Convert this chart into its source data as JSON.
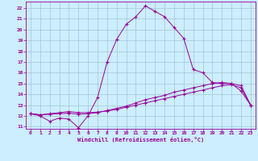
{
  "xlabel": "Windchill (Refroidissement éolien,°C)",
  "bg_color": "#cceeff",
  "grid_color": "#99bbcc",
  "line_color": "#990099",
  "xlim": [
    -0.5,
    23.5
  ],
  "ylim": [
    10.8,
    22.6
  ],
  "xticks": [
    0,
    1,
    2,
    3,
    4,
    5,
    6,
    7,
    8,
    9,
    10,
    11,
    12,
    13,
    14,
    15,
    16,
    17,
    18,
    19,
    20,
    21,
    22,
    23
  ],
  "yticks": [
    11,
    12,
    13,
    14,
    15,
    16,
    17,
    18,
    19,
    20,
    21,
    22
  ],
  "line1_x": [
    0,
    1,
    2,
    3,
    4,
    5,
    6,
    7,
    8,
    9,
    10,
    11,
    12,
    13,
    14,
    15,
    16,
    17,
    18,
    19,
    20,
    21,
    22,
    23
  ],
  "line1_y": [
    12.2,
    12.0,
    11.5,
    11.8,
    11.7,
    10.9,
    12.0,
    13.7,
    17.0,
    19.1,
    20.5,
    21.2,
    22.2,
    21.7,
    21.2,
    20.2,
    19.2,
    16.3,
    16.0,
    15.1,
    15.0,
    15.0,
    14.3,
    13.0
  ],
  "line2_x": [
    0,
    1,
    2,
    3,
    4,
    5,
    6,
    7,
    8,
    9,
    10,
    11,
    12,
    13,
    14,
    15,
    16,
    17,
    18,
    19,
    20,
    21,
    22,
    23
  ],
  "line2_y": [
    12.2,
    12.1,
    12.15,
    12.2,
    12.25,
    12.15,
    12.2,
    12.3,
    12.5,
    12.7,
    12.9,
    13.2,
    13.5,
    13.7,
    13.9,
    14.2,
    14.4,
    14.6,
    14.8,
    15.0,
    15.1,
    15.0,
    14.8,
    13.0
  ],
  "line3_x": [
    0,
    1,
    2,
    3,
    4,
    5,
    6,
    7,
    8,
    9,
    10,
    11,
    12,
    13,
    14,
    15,
    16,
    17,
    18,
    19,
    20,
    21,
    22,
    23
  ],
  "line3_y": [
    12.2,
    12.1,
    12.2,
    12.3,
    12.4,
    12.3,
    12.3,
    12.35,
    12.45,
    12.6,
    12.8,
    13.0,
    13.2,
    13.4,
    13.6,
    13.8,
    14.0,
    14.2,
    14.4,
    14.6,
    14.8,
    14.9,
    14.6,
    13.0
  ]
}
